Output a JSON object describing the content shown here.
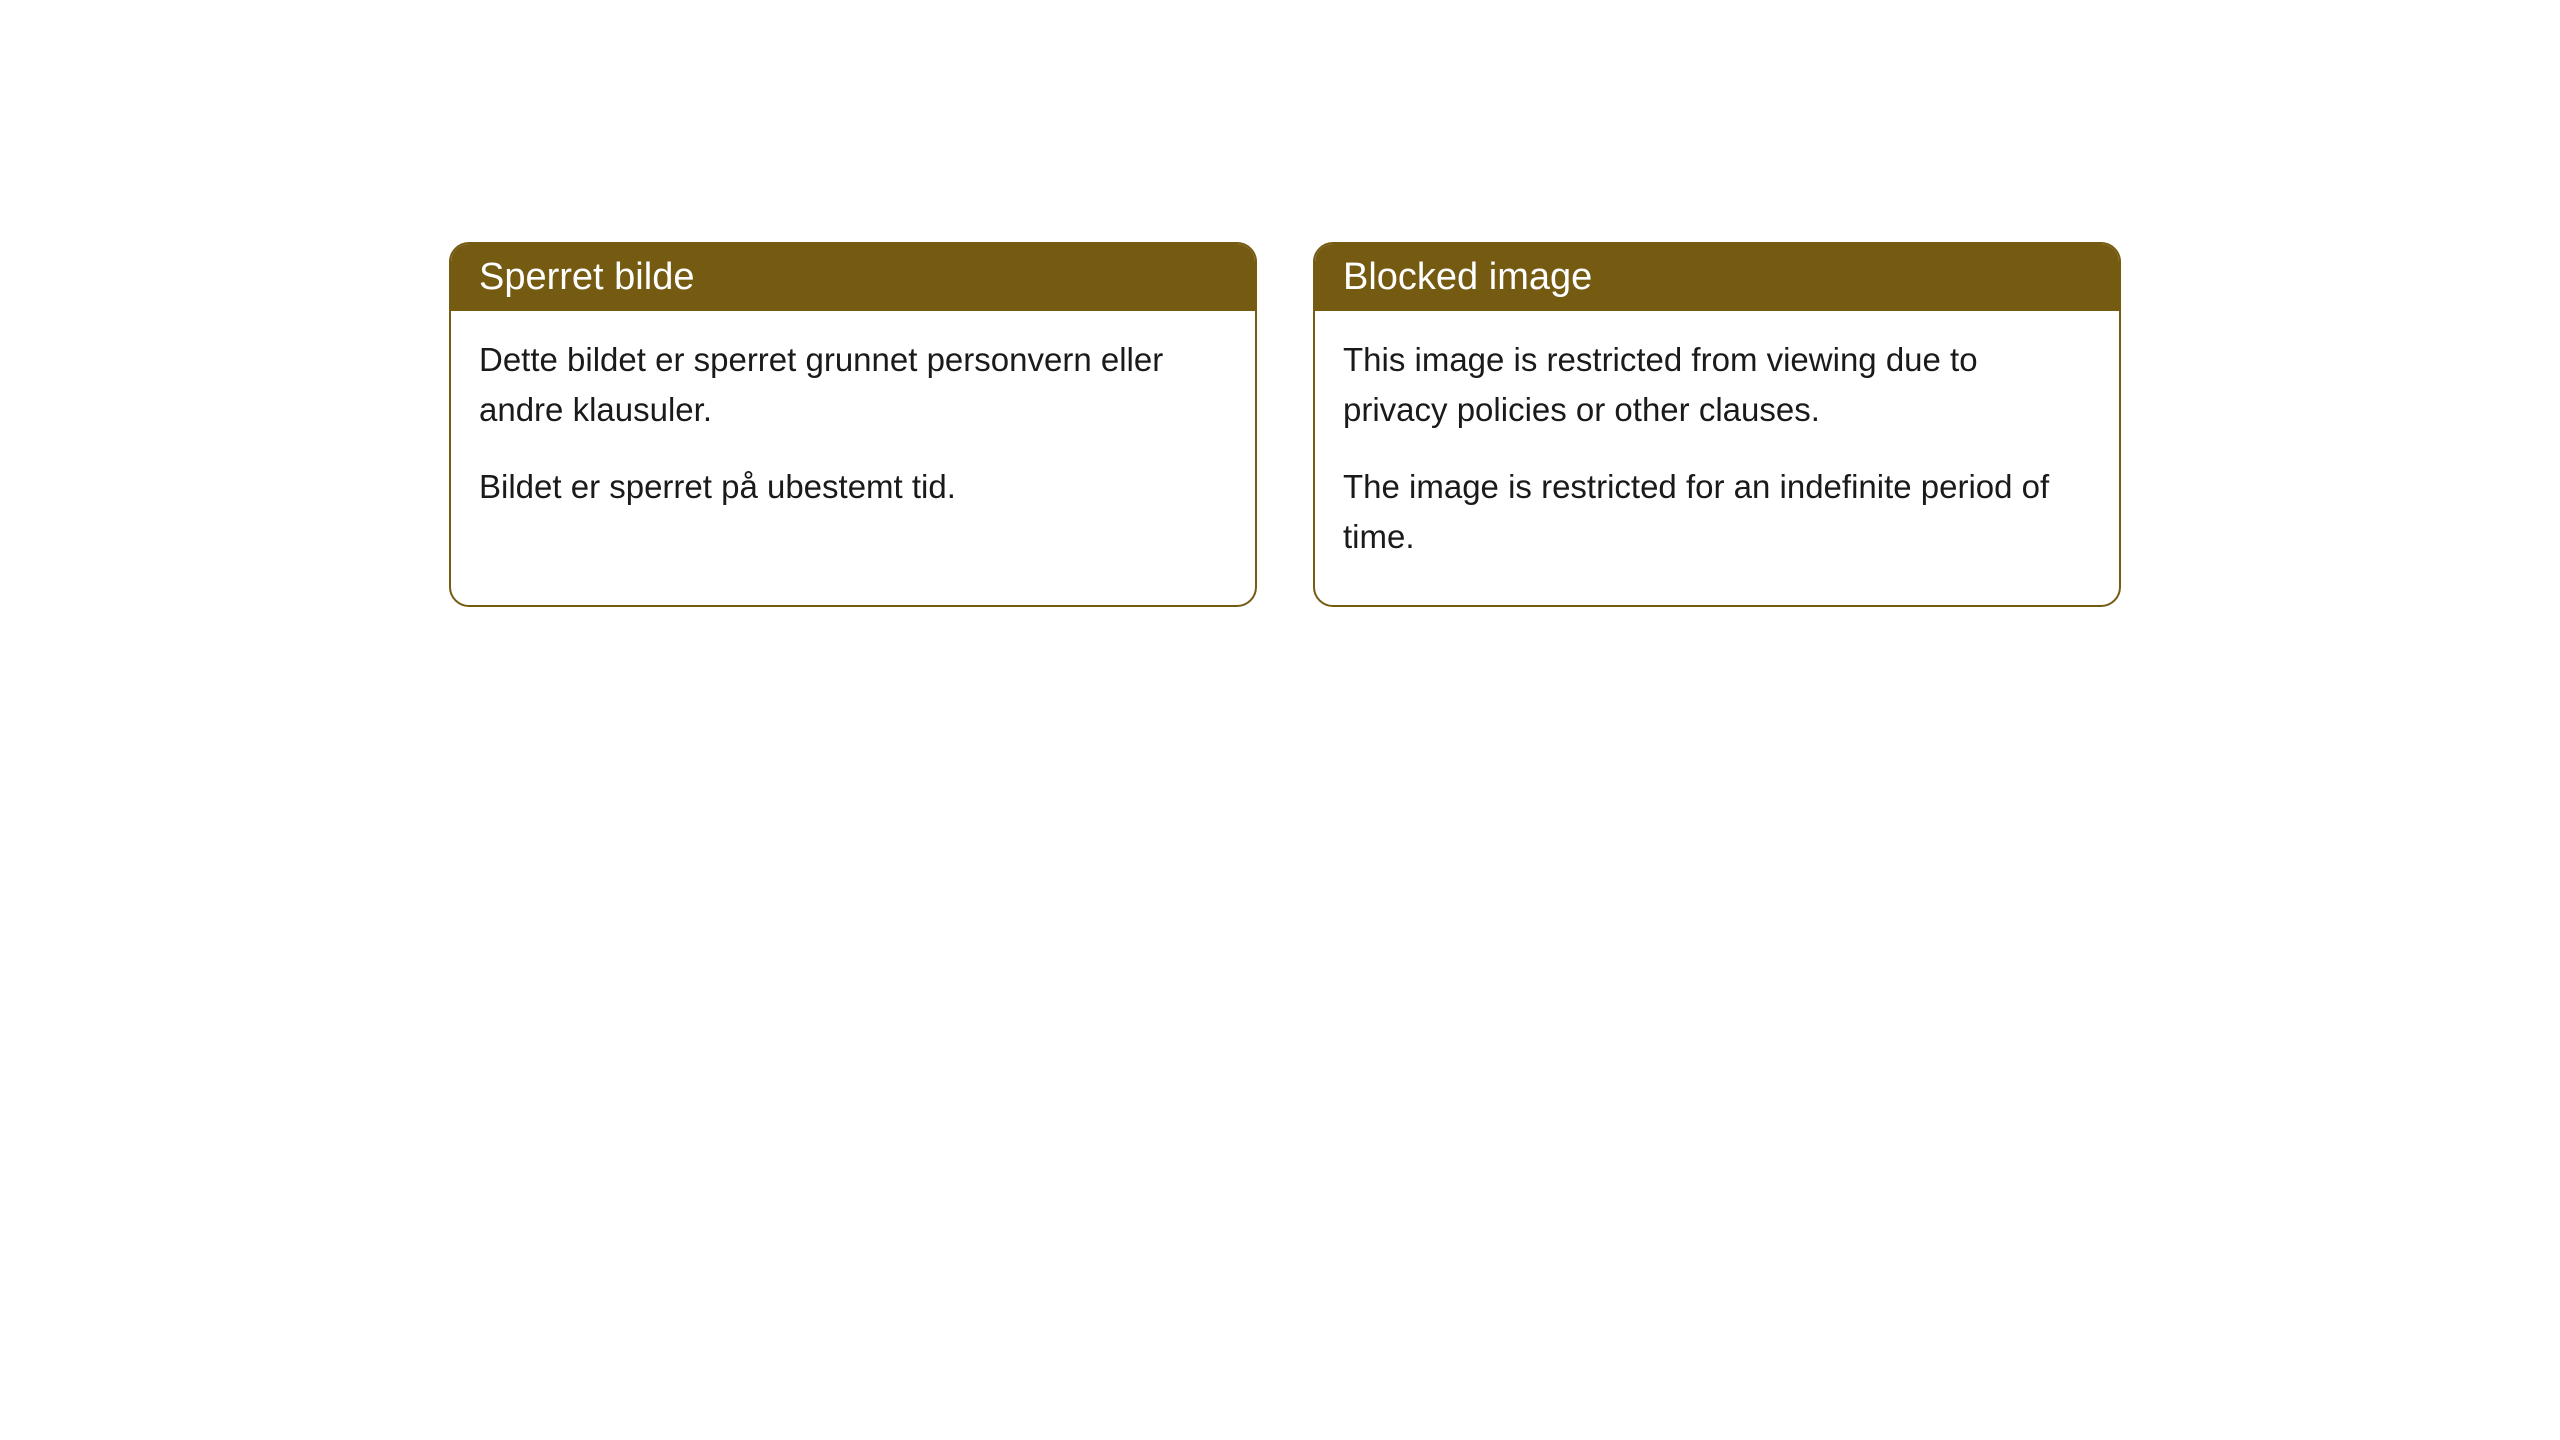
{
  "cards": [
    {
      "title": "Sperret bilde",
      "paragraph1": "Dette bildet er sperret grunnet personvern eller andre klausuler.",
      "paragraph2": "Bildet er sperret på ubestemt tid."
    },
    {
      "title": "Blocked image",
      "paragraph1": "This image is restricted from viewing due to privacy policies or other clauses.",
      "paragraph2": "The image is restricted for an indefinite period of time."
    }
  ],
  "style": {
    "header_bg_color": "#755a11",
    "header_text_color": "#ffffff",
    "border_color": "#755a11",
    "body_text_color": "#1a1a1a",
    "card_bg_color": "#ffffff",
    "page_bg_color": "#ffffff",
    "border_radius": 20,
    "header_fontsize": 38,
    "body_fontsize": 33
  }
}
